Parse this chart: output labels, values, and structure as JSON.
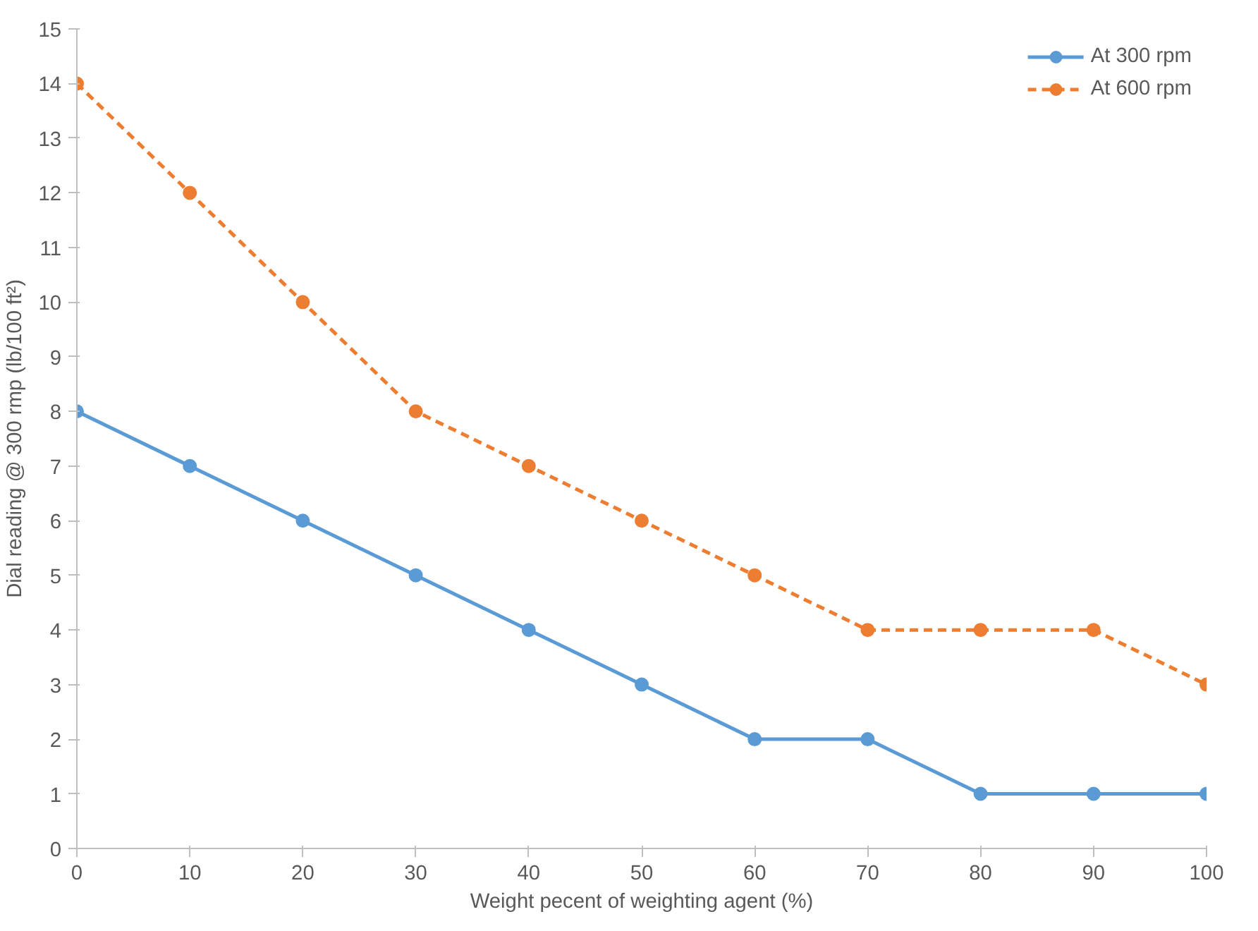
{
  "chart_data": {
    "type": "line",
    "xlabel": "Weight pecent of weighting agent (%)",
    "ylabel": "Dial reading @ 300 rmp (lb/100 ft²)",
    "x": [
      0,
      10,
      20,
      30,
      40,
      50,
      60,
      70,
      80,
      90,
      100
    ],
    "xlim": [
      0,
      100
    ],
    "xticks": [
      0,
      10,
      20,
      30,
      40,
      50,
      60,
      70,
      80,
      90,
      100
    ],
    "ylim": [
      0,
      15
    ],
    "yticks": [
      0,
      1,
      2,
      3,
      4,
      5,
      6,
      7,
      8,
      9,
      10,
      11,
      12,
      13,
      14,
      15
    ],
    "series": [
      {
        "name": "At 300 rpm",
        "color": "#5b9bd5",
        "line_style": "solid",
        "values": [
          8,
          7,
          6,
          5,
          4,
          3,
          2,
          2,
          1,
          1,
          1
        ]
      },
      {
        "name": "At 600 rpm",
        "color": "#ed7d31",
        "line_style": "dashed",
        "values": [
          14,
          12,
          10,
          8,
          7,
          6,
          5,
          4,
          4,
          4,
          3
        ]
      }
    ],
    "marker": "circle",
    "legend": "top right",
    "grid": false
  }
}
